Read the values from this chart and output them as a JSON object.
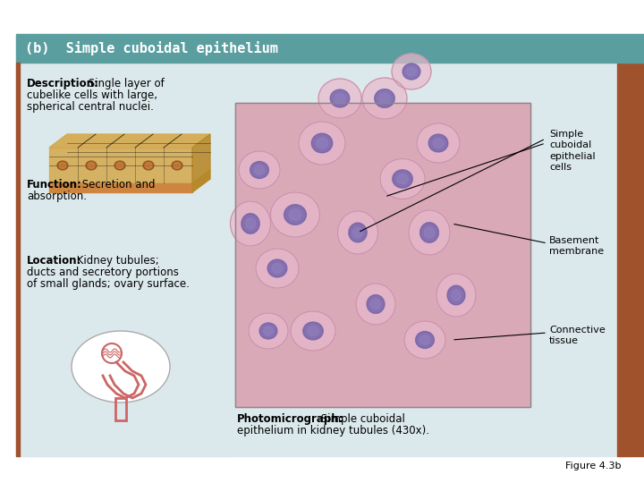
{
  "title": "(b)  Simple cuboidal epithelium",
  "title_bg": "#5b9ea0",
  "title_color": "white",
  "main_bg": "#dce9ec",
  "outer_bg": "#ffffff",
  "left_panel_bg": "#dce9ec",
  "right_accent": "#a0522d",
  "description_bold": "Description:",
  "description_text": " Single layer of\ncubelike cells with large,\nspherical central nuclei.",
  "function_bold": "Function:",
  "function_text": " Secretion and\nabsorption.",
  "location_bold": "Location:",
  "location_text": " Kidney tubules;\nducts and secretory portions\nof small glands; ovary surface.",
  "photo_bold": "Photomicrograph:",
  "photo_text": " Simple cuboidal\nepithelium in kidney tubules (430x).",
  "label1": "Simple\ncuboidal\nepithelial\ncells",
  "label2": "Basement\nmembrane",
  "label3": "Connective\ntissue",
  "figure_label": "Figure 4.3b",
  "font_family": "DejaVu Sans"
}
